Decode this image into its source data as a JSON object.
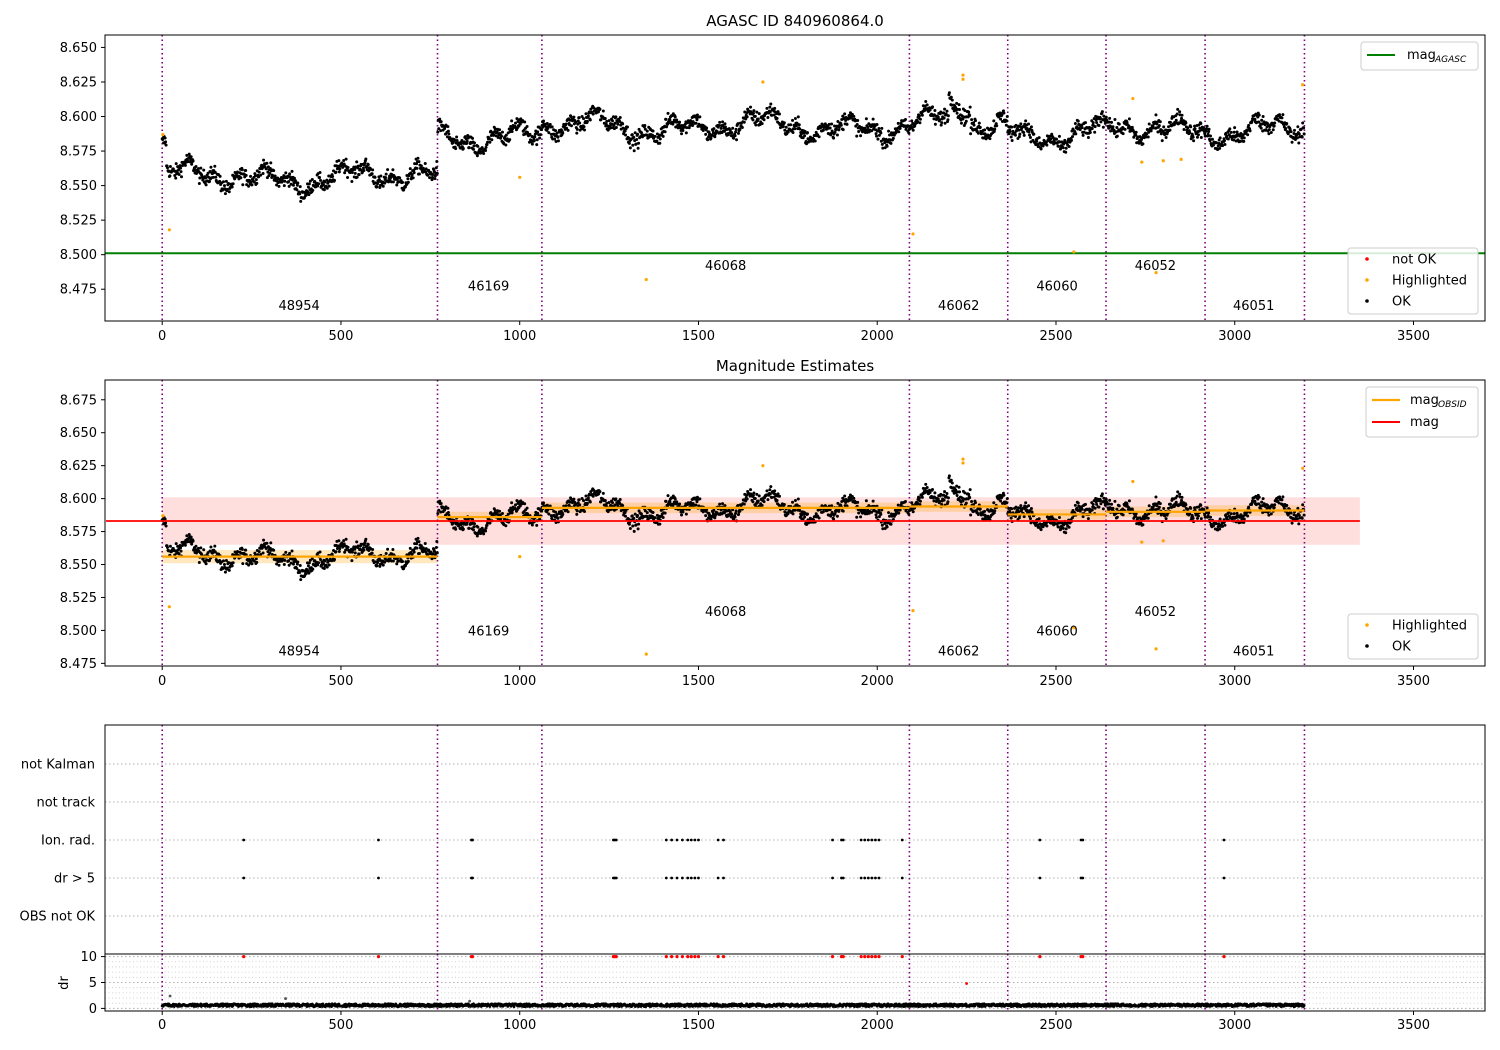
{
  "chart_data": [
    {
      "type": "scatter",
      "title": "AGASC ID 840960864.0",
      "xlim": [
        -160,
        3700
      ],
      "ylim": [
        8.452,
        8.659
      ],
      "x_ticks": [
        0,
        500,
        1000,
        1500,
        2000,
        2500,
        3000,
        3500
      ],
      "y_ticks": [
        8.475,
        8.5,
        8.525,
        8.55,
        8.575,
        8.6,
        8.625,
        8.65
      ],
      "y_tick_labels": [
        "8.475",
        "8.500",
        "8.525",
        "8.550",
        "8.575",
        "8.600",
        "8.625",
        "8.650"
      ],
      "legend_top": {
        "placement": "top-right",
        "items": [
          {
            "label": "mag",
            "sub": "AGASC",
            "color": "#008000",
            "kind": "line"
          }
        ]
      },
      "legend_bottom": {
        "placement": "bottom-right",
        "items": [
          {
            "label": "not OK",
            "color": "#ff0000",
            "kind": "dot"
          },
          {
            "label": "Highlighted",
            "color": "#ffa500",
            "kind": "dot"
          },
          {
            "label": "OK",
            "color": "#000000",
            "kind": "dot"
          }
        ]
      },
      "mag_agasc": 8.501,
      "obs_labels": [
        {
          "text": "48954",
          "x": 383,
          "y": 8.46
        },
        {
          "text": "46169",
          "x": 913,
          "y": 8.474
        },
        {
          "text": "46068",
          "x": 1576,
          "y": 8.489
        },
        {
          "text": "46062",
          "x": 2228,
          "y": 8.46
        },
        {
          "text": "46060",
          "x": 2503,
          "y": 8.474
        },
        {
          "text": "46052",
          "x": 2778,
          "y": 8.489
        },
        {
          "text": "46051",
          "x": 3053,
          "y": 8.46
        }
      ],
      "highlighted": [
        [
          2,
          8.587
        ],
        [
          20,
          8.518
        ],
        [
          1000,
          8.556
        ],
        [
          1354,
          8.482
        ],
        [
          1680,
          8.625
        ],
        [
          2100,
          8.515
        ],
        [
          2240,
          8.63
        ],
        [
          2240,
          8.627
        ],
        [
          2550,
          8.502
        ],
        [
          2715,
          8.613
        ],
        [
          2740,
          8.567
        ],
        [
          2780,
          8.487
        ],
        [
          2800,
          8.568
        ],
        [
          2850,
          8.569
        ],
        [
          3190,
          8.623
        ]
      ]
    },
    {
      "type": "scatter",
      "title": "Magnitude Estimates",
      "xlim": [
        -160,
        3700
      ],
      "ylim": [
        8.473,
        8.69
      ],
      "x_ticks": [
        0,
        500,
        1000,
        1500,
        2000,
        2500,
        3000,
        3500
      ],
      "y_ticks": [
        8.475,
        8.5,
        8.525,
        8.55,
        8.575,
        8.6,
        8.625,
        8.65,
        8.675
      ],
      "y_tick_labels": [
        "8.475",
        "8.500",
        "8.525",
        "8.550",
        "8.575",
        "8.600",
        "8.625",
        "8.650",
        "8.675"
      ],
      "legend_top": {
        "placement": "top-right",
        "items": [
          {
            "label": "mag",
            "sub": "OBSID",
            "color": "#ffa500",
            "kind": "line"
          },
          {
            "label": "mag",
            "sub": "",
            "color": "#ff0000",
            "kind": "line"
          }
        ]
      },
      "legend_bottom": {
        "placement": "bottom-right",
        "items": [
          {
            "label": "Highlighted",
            "color": "#ffa500",
            "kind": "dot"
          },
          {
            "label": "OK",
            "color": "#000000",
            "kind": "dot"
          }
        ]
      },
      "mag": 8.583,
      "mag_band": [
        8.565,
        8.601
      ],
      "mag_obsid": [
        {
          "x0": 0,
          "x1": 770,
          "value": 8.556,
          "lo": 8.551,
          "hi": 8.561
        },
        {
          "x0": 770,
          "x1": 1062,
          "value": 8.586,
          "lo": 8.582,
          "hi": 8.59
        },
        {
          "x0": 1062,
          "x1": 2090,
          "value": 8.593,
          "lo": 8.589,
          "hi": 8.597
        },
        {
          "x0": 2090,
          "x1": 2365,
          "value": 8.594,
          "lo": 8.59,
          "hi": 8.598
        },
        {
          "x0": 2365,
          "x1": 2640,
          "value": 8.588,
          "lo": 8.584,
          "hi": 8.592
        },
        {
          "x0": 2640,
          "x1": 2917,
          "value": 8.59,
          "lo": 8.586,
          "hi": 8.594
        },
        {
          "x0": 2917,
          "x1": 3195,
          "value": 8.591,
          "lo": 8.587,
          "hi": 8.595
        }
      ],
      "obs_labels": [
        {
          "text": "48954",
          "x": 383,
          "y": 8.481
        },
        {
          "text": "46169",
          "x": 913,
          "y": 8.496
        },
        {
          "text": "46068",
          "x": 1576,
          "y": 8.511
        },
        {
          "text": "46062",
          "x": 2228,
          "y": 8.481
        },
        {
          "text": "46060",
          "x": 2503,
          "y": 8.496
        },
        {
          "text": "46052",
          "x": 2778,
          "y": 8.511
        },
        {
          "text": "46051",
          "x": 3053,
          "y": 8.481
        }
      ],
      "highlighted": [
        [
          2,
          8.587
        ],
        [
          20,
          8.518
        ],
        [
          1000,
          8.556
        ],
        [
          1354,
          8.482
        ],
        [
          1680,
          8.625
        ],
        [
          2100,
          8.515
        ],
        [
          2240,
          8.63
        ],
        [
          2240,
          8.627
        ],
        [
          2550,
          8.502
        ],
        [
          2715,
          8.613
        ],
        [
          2740,
          8.567
        ],
        [
          2780,
          8.486
        ],
        [
          2800,
          8.568
        ],
        [
          3190,
          8.623
        ]
      ]
    },
    {
      "type": "scatter",
      "title": "",
      "xlim": [
        -160,
        3700
      ],
      "categories": [
        "not Kalman",
        "not track",
        "Ion. rad.",
        "dr > 5",
        "OBS not OK"
      ],
      "flag_x": [
        228,
        605,
        865,
        868,
        1262,
        1266,
        1270,
        1410,
        1425,
        1440,
        1455,
        1470,
        1480,
        1490,
        1500,
        1555,
        1570,
        1875,
        1900,
        1905,
        1955,
        1965,
        1975,
        1985,
        1995,
        2005,
        2070,
        2455,
        2570,
        2575,
        2970
      ]
    },
    {
      "type": "scatter",
      "title": "",
      "xlim": [
        -160,
        3700
      ],
      "ylim": [
        -0.5,
        10.5
      ],
      "ylabel": "dr",
      "x_ticks": [
        0,
        500,
        1000,
        1500,
        2000,
        2500,
        3000,
        3500
      ],
      "y_ticks": [
        0,
        5,
        10
      ],
      "y_tick_labels": [
        "0",
        "5",
        "10"
      ],
      "minor_y_grid": [
        1,
        2,
        3,
        4,
        6,
        7,
        8,
        9
      ],
      "extra_points": [
        [
          22,
          2.4
        ],
        [
          345,
          1.9
        ],
        [
          860,
          1.4
        ],
        [
          2250,
          4.8,
          "red"
        ]
      ]
    }
  ],
  "obsid_boundaries": [
    0,
    770,
    1062,
    2090,
    2365,
    2640,
    2917,
    3195
  ],
  "colors": {
    "ok": "#000000",
    "highlighted": "#ffa500",
    "not_ok": "#ff0000",
    "agasc": "#008000",
    "mag": "#ff0000",
    "obsid": "#ffa500",
    "boundary": "#800080",
    "band": "#ffb6b6"
  }
}
